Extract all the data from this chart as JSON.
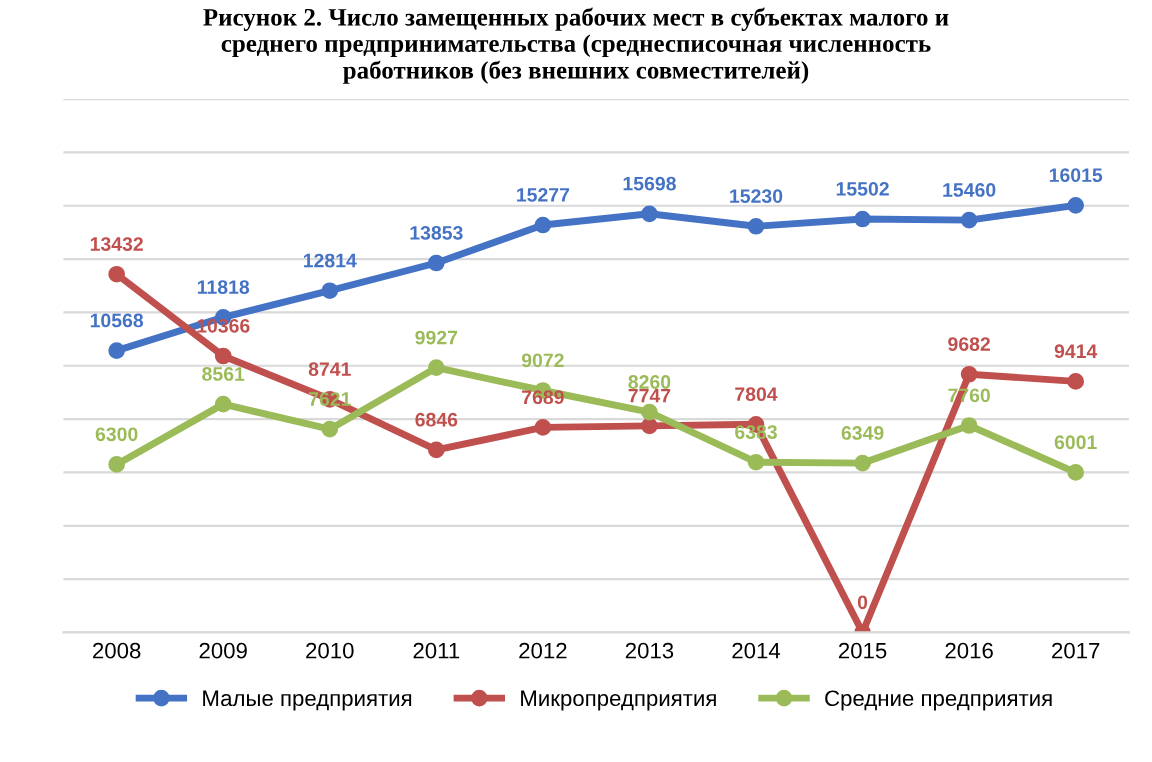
{
  "chart_data": {
    "type": "line",
    "title": "Рисунок 2. Число замещенных рабочих мест в субъектах малого и\nсреднего предпринимательства (среднесписочная численность\nработников (без внешних совместителей)",
    "categories": [
      "2008",
      "2009",
      "2010",
      "2011",
      "2012",
      "2013",
      "2014",
      "2015",
      "2016",
      "2017"
    ],
    "series": [
      {
        "name": "Малые предприятия",
        "color": "#4472c4",
        "values": [
          10568,
          11818,
          12814,
          13853,
          15277,
          15698,
          15230,
          15502,
          15460,
          16015
        ]
      },
      {
        "name": "Микропредприятия",
        "color": "#c0504d",
        "values": [
          13432,
          10366,
          8741,
          6846,
          7689,
          7747,
          7804,
          0,
          9682,
          9414
        ]
      },
      {
        "name": "Средние предприятия",
        "color": "#9bbb59",
        "values": [
          6300,
          8561,
          7621,
          9927,
          9072,
          8260,
          6383,
          6349,
          7760,
          6001
        ]
      }
    ],
    "ylim": [
      0,
      20000
    ],
    "yticks": [
      {
        "value": 0,
        "label": null
      },
      {
        "value": 2000,
        "label": null
      },
      {
        "value": 4000,
        "label": null
      },
      {
        "value": 6000,
        "label": null
      },
      {
        "value": 8000,
        "label": null
      },
      {
        "value": 10000,
        "label": null
      },
      {
        "value": 12000,
        "label": null
      },
      {
        "value": 14000,
        "label": null
      },
      {
        "value": 16000,
        "label": null
      },
      {
        "value": 18000,
        "label": null
      },
      {
        "value": 20000,
        "label": null
      }
    ],
    "tick_labels": "x",
    "grid": "y",
    "legend": "bottom",
    "marker": "circle",
    "line_style": "solid",
    "data_labels": true
  }
}
